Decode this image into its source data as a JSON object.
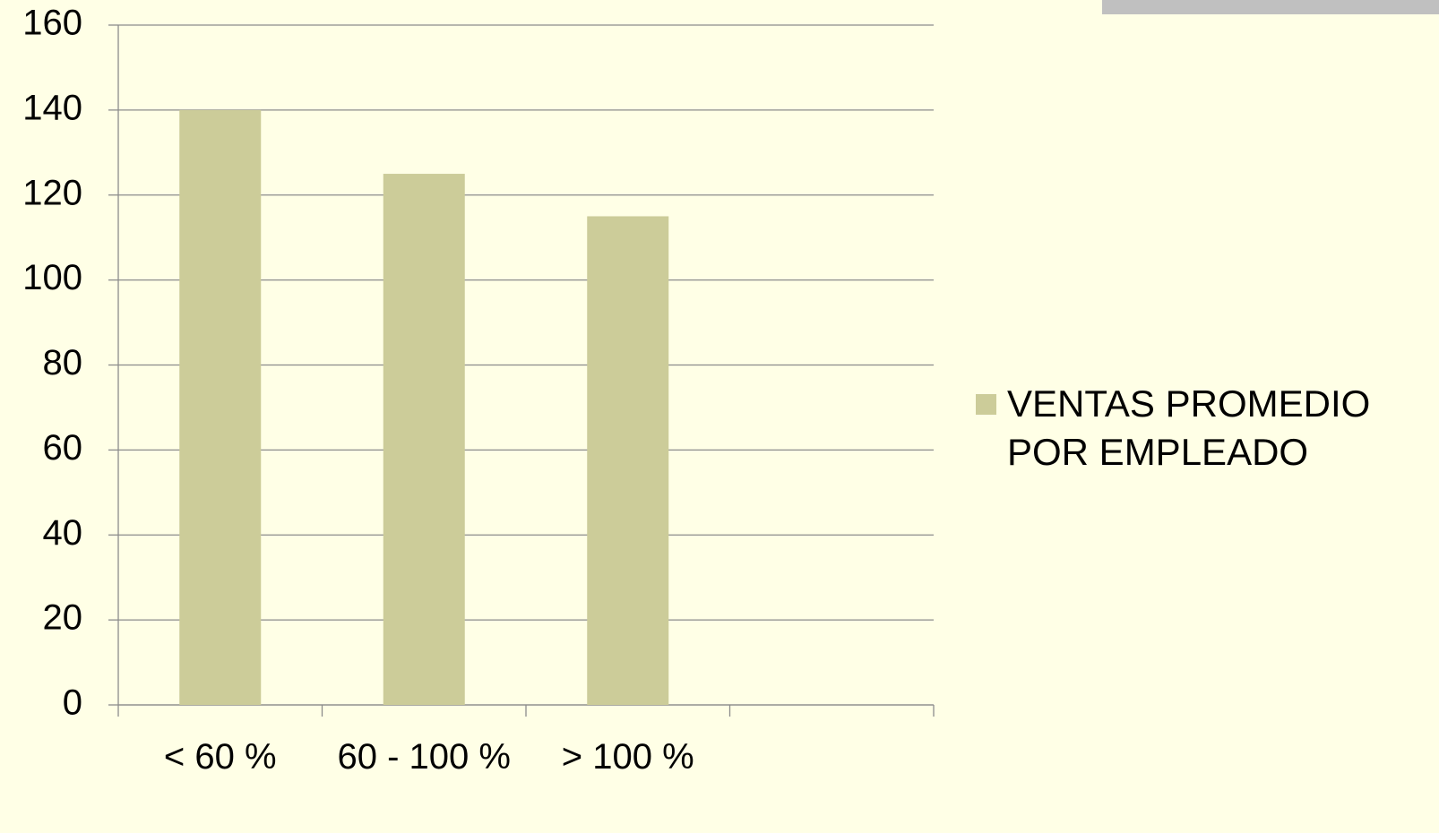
{
  "chart_data": {
    "type": "bar",
    "categories": [
      "< 60 %",
      "60 - 100 %",
      "> 100 %",
      null
    ],
    "series": [
      {
        "name": "VENTAS PROMEDIO POR EMPLEADO",
        "color": "#cccc99",
        "values": [
          140,
          125,
          115,
          null
        ]
      }
    ],
    "ylim": [
      0,
      160
    ],
    "yticks": [
      0,
      20,
      40,
      60,
      80,
      100,
      120,
      140,
      160
    ],
    "grid": true,
    "legend": "right"
  }
}
